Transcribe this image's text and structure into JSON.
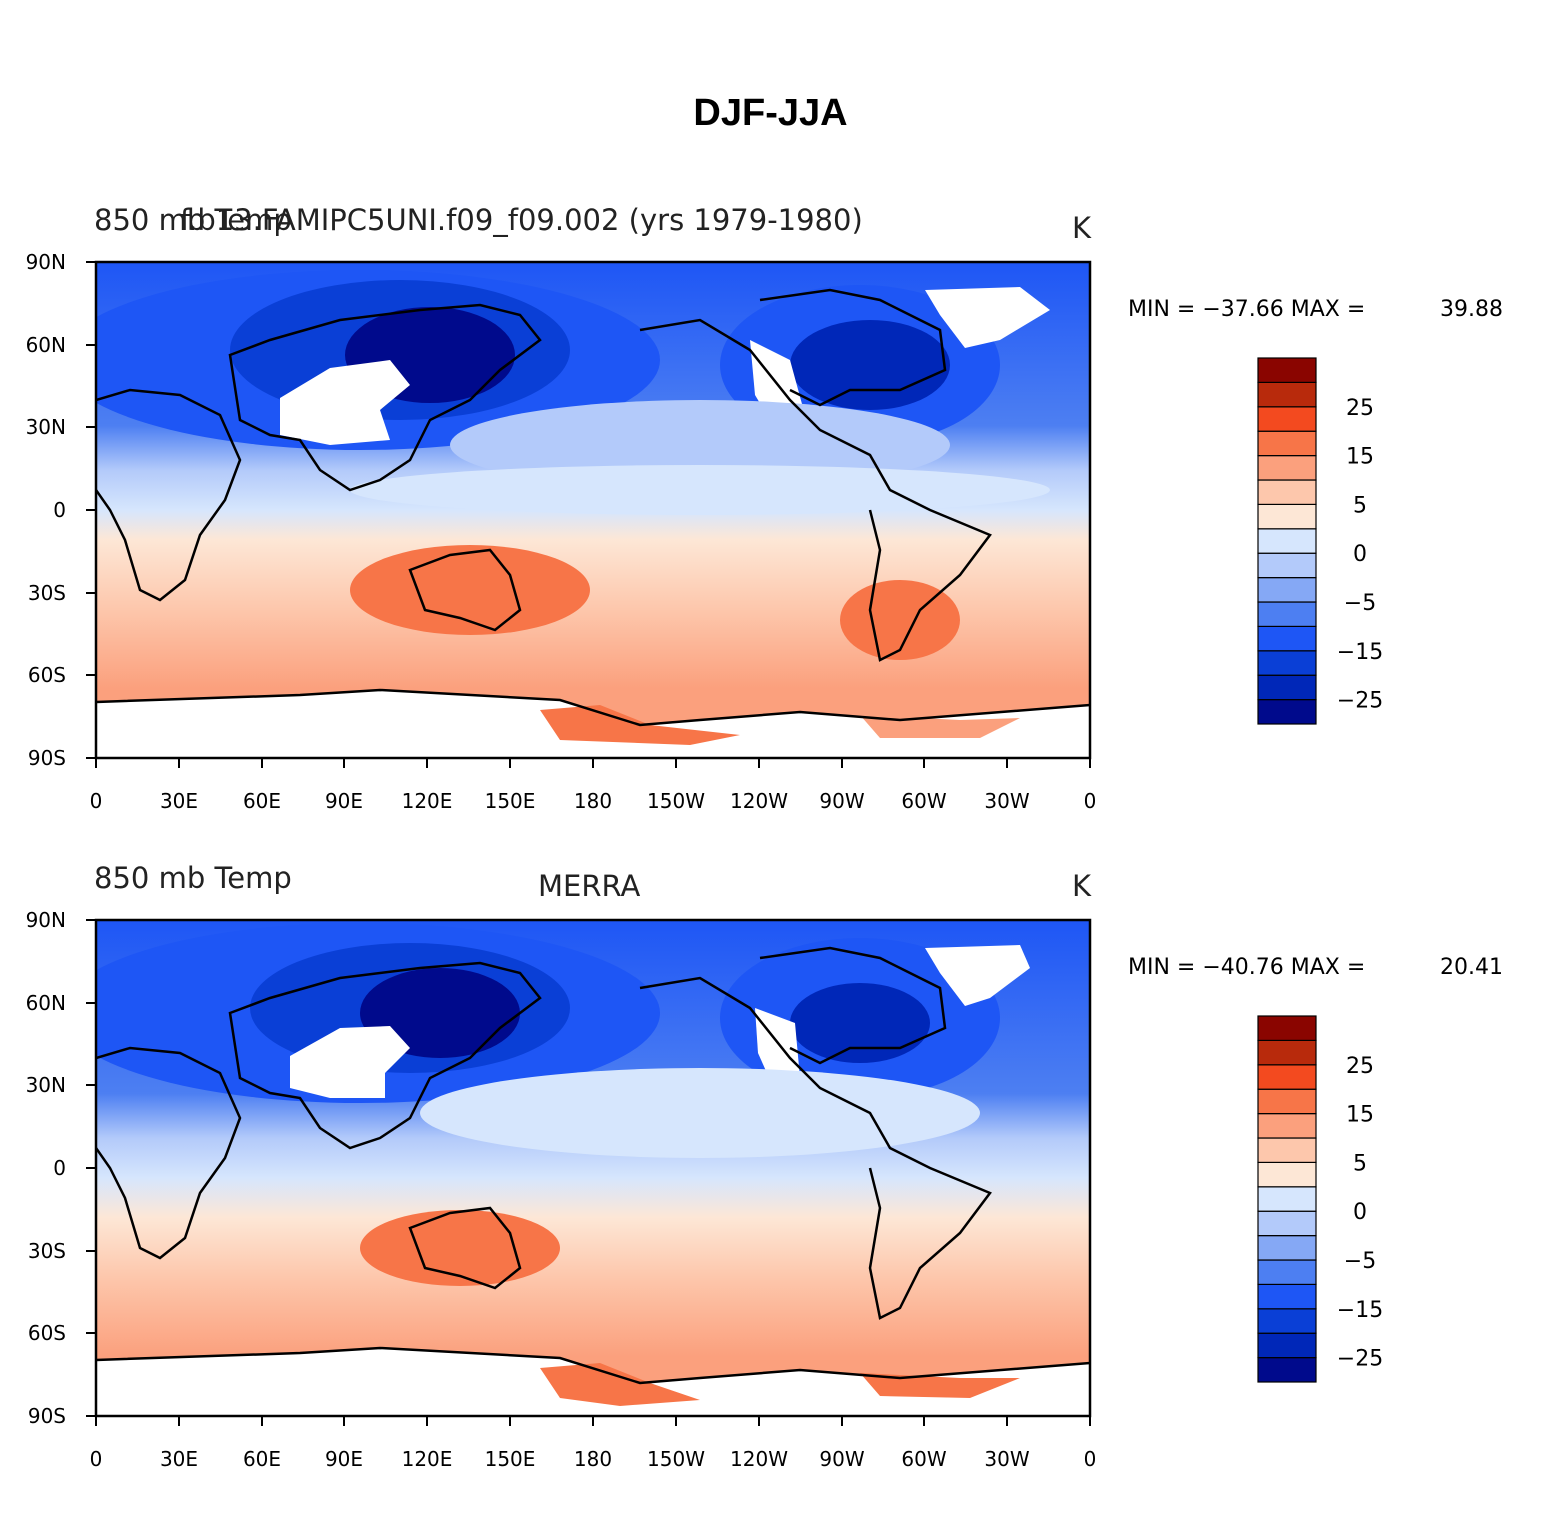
{
  "title": "DJF-JJA",
  "lon_ticks": [
    "0",
    "30E",
    "60E",
    "90E",
    "120E",
    "150E",
    "180",
    "150W",
    "120W",
    "90W",
    "60W",
    "30W",
    "0"
  ],
  "lat_ticks": [
    "90N",
    "60N",
    "30N",
    "0",
    "30S",
    "60S",
    "90S"
  ],
  "colors": {
    "levels": [
      "#000a8c",
      "#0027b8",
      "#0a3fd6",
      "#1e56f5",
      "#4d7ff2",
      "#85a8f5",
      "#b3cafa",
      "#d6e6fd",
      "#fde7d6",
      "#fdc7ac",
      "#fba07d",
      "#f77548",
      "#f34a1f",
      "#b82a0c",
      "#8a0500"
    ],
    "land_mask": "#ffffff",
    "coast": "#000000"
  },
  "panels": [
    {
      "id": "model",
      "variable": "850  mb  Temp",
      "case": "f.b13.FAMIPC5UNI.f09_f09.002 (yrs 1979-1980)",
      "units": "K",
      "min_label": "MIN = −37.66  MAX =",
      "max_value": "39.88",
      "colorbar_labels": [
        "25",
        "15",
        "5",
        "0",
        "−5",
        "−15",
        "−25"
      ]
    },
    {
      "id": "obs",
      "variable": "850  mb  Temp",
      "case": "MERRA",
      "units": "K",
      "min_label": "MIN = −40.76  MAX =",
      "max_value": "20.41",
      "colorbar_labels": [
        "25",
        "15",
        "5",
        "0",
        "−5",
        "−15",
        "−25"
      ]
    }
  ],
  "chart_data": [
    {
      "type": "heatmap",
      "title": "850 mb Temp — f.b13.FAMIPC5UNI.f09_f09.002 (yrs 1979-1980)",
      "units": "K",
      "xlim": [
        0,
        360
      ],
      "ylim": [
        -90,
        90
      ],
      "colorbar_levels": [
        -35,
        -30,
        -25,
        -20,
        -15,
        -10,
        -5,
        0,
        5,
        10,
        15,
        20,
        25,
        30
      ],
      "min": -37.66,
      "max": 39.88
    },
    {
      "type": "heatmap",
      "title": "850 mb Temp — MERRA",
      "units": "K",
      "xlim": [
        0,
        360
      ],
      "ylim": [
        -90,
        90
      ],
      "colorbar_levels": [
        -35,
        -30,
        -25,
        -20,
        -15,
        -10,
        -5,
        0,
        5,
        10,
        15,
        20,
        25,
        30
      ],
      "min": -40.76,
      "max": 20.41
    }
  ]
}
